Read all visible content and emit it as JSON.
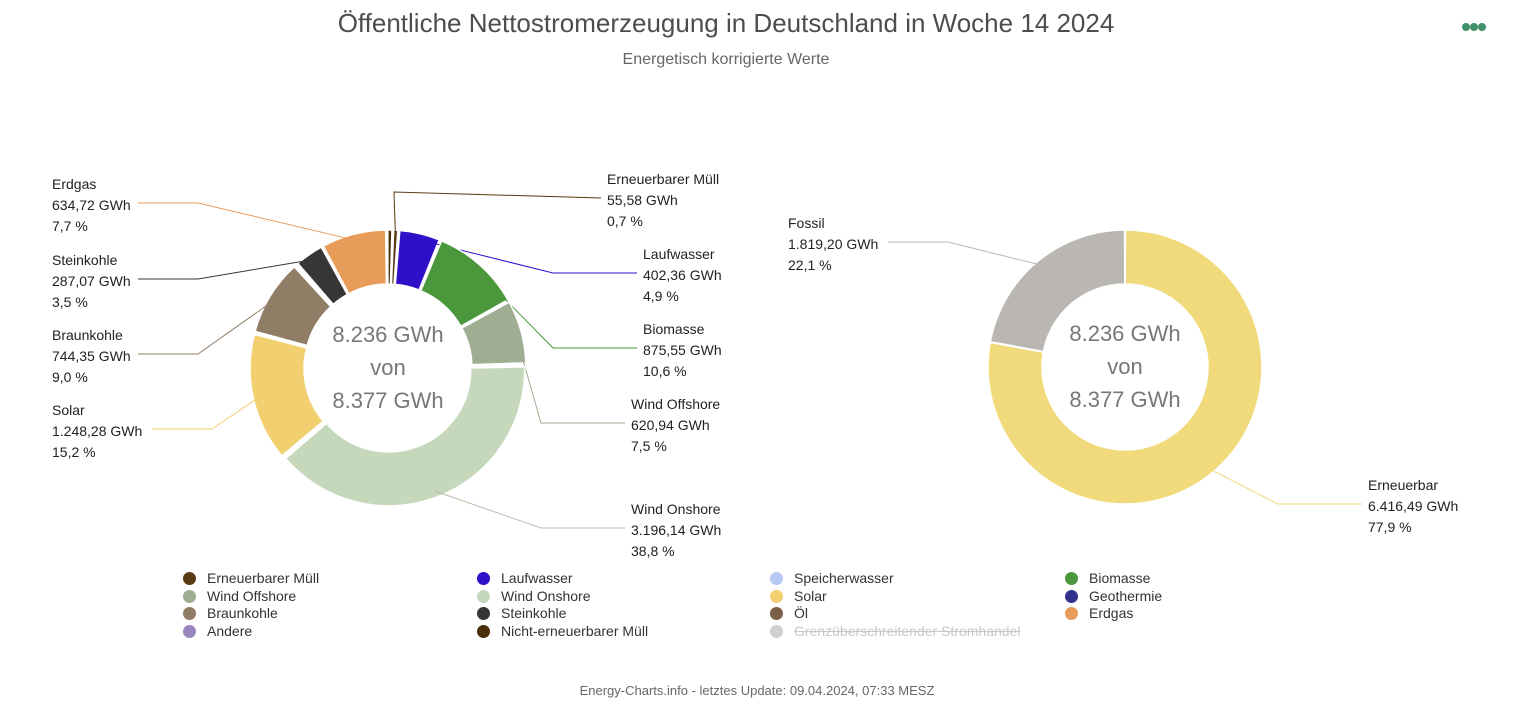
{
  "header": {
    "title": "Öffentliche Nettostromerzeugung in Deutschland in Woche 14 2024",
    "subtitle": "Energetisch korrigierte Werte"
  },
  "menu": {
    "icon": "more-dots-icon",
    "color": "#3f8f69"
  },
  "center_label": {
    "line1": "8.236 GWh",
    "line2": "von",
    "line3": "8.377 GWh"
  },
  "chart_data": [
    {
      "type": "pie",
      "variant": "donut",
      "center_text": [
        "8.236 GWh",
        "von",
        "8.377 GWh"
      ],
      "slices": [
        {
          "name": "Erneuerbarer Müll",
          "value_text": "55,58 GWh",
          "percent_text": "0,7 %",
          "value": 55.58,
          "color": "#5a3a12"
        },
        {
          "name": "Laufwasser",
          "value_text": "402,36 GWh",
          "percent_text": "4,9 %",
          "value": 402.36,
          "color": "#2f0fc8"
        },
        {
          "name": "Biomasse",
          "value_text": "875,55 GWh",
          "percent_text": "10,6 %",
          "value": 875.55,
          "color": "#4a973c"
        },
        {
          "name": "Wind Offshore",
          "value_text": "620,94 GWh",
          "percent_text": "7,5 %",
          "value": 620.94,
          "color": "#9fad93"
        },
        {
          "name": "Wind Onshore",
          "value_text": "3.196,14 GWh",
          "percent_text": "38,8 %",
          "value": 3196.14,
          "color": "#c6d8bc"
        },
        {
          "name": "Solar",
          "value_text": "1.248,28 GWh",
          "percent_text": "15,2 %",
          "value": 1248.28,
          "color": "#f2cf6f"
        },
        {
          "name": "Braunkohle",
          "value_text": "744,35 GWh",
          "percent_text": "9,0 %",
          "value": 744.35,
          "color": "#8f7d66"
        },
        {
          "name": "Öl",
          "value": 25.0,
          "color": "#7a5f47"
        },
        {
          "name": "Steinkohle",
          "value_text": "287,07 GWh",
          "percent_text": "3,5 %",
          "value": 287.07,
          "color": "#363636"
        },
        {
          "name": "Erdgas",
          "value_text": "634,72 GWh",
          "percent_text": "7,7 %",
          "value": 634.72,
          "color": "#e89c5a"
        },
        {
          "name": "Nicht-erneuerbarer Müll",
          "value": 55.0,
          "color": "#4a2f08"
        }
      ]
    },
    {
      "type": "pie",
      "variant": "donut",
      "center_text": [
        "8.236 GWh",
        "von",
        "8.377 GWh"
      ],
      "slices": [
        {
          "name": "Erneuerbar",
          "value_text": "6.416,49 GWh",
          "percent_text": "77,9 %",
          "value": 6416.49,
          "color": "#f1da7c"
        },
        {
          "name": "Fossil",
          "value_text": "1.819,20 GWh",
          "percent_text": "22,1 %",
          "value": 1819.2,
          "color": "#bab7b2"
        }
      ]
    }
  ],
  "legend": [
    {
      "label": "Erneuerbarer Müll",
      "color": "#5a3a12",
      "hidden": false
    },
    {
      "label": "Laufwasser",
      "color": "#2f0fc8",
      "hidden": false
    },
    {
      "label": "Speicherwasser",
      "color": "#b7c8f5",
      "hidden": false
    },
    {
      "label": "Biomasse",
      "color": "#4a973c",
      "hidden": false
    },
    {
      "label": "Wind Offshore",
      "color": "#9fad93",
      "hidden": false
    },
    {
      "label": "Wind Onshore",
      "color": "#c6d8bc",
      "hidden": false
    },
    {
      "label": "Solar",
      "color": "#f2cf6f",
      "hidden": false
    },
    {
      "label": "Geothermie",
      "color": "#33308e",
      "hidden": false
    },
    {
      "label": "Braunkohle",
      "color": "#8f7d66",
      "hidden": false
    },
    {
      "label": "Steinkohle",
      "color": "#363636",
      "hidden": false
    },
    {
      "label": "Öl",
      "color": "#7a5f47",
      "hidden": false
    },
    {
      "label": "Erdgas",
      "color": "#e89c5a",
      "hidden": false
    },
    {
      "label": "Andere",
      "color": "#9a86bf",
      "hidden": false
    },
    {
      "label": "Nicht-erneuerbarer Müll",
      "color": "#4a2f08",
      "hidden": false
    },
    {
      "label": "Grenzüberschreitender Stromhandel",
      "color": "#d0d0d0",
      "hidden": true
    }
  ],
  "footer": {
    "text": "Energy-Charts.info - letztes Update: 09.04.2024, 07:33 MESZ"
  }
}
